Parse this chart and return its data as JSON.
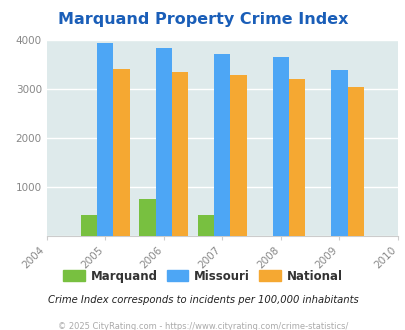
{
  "title": "Marquand Property Crime Index",
  "years": [
    2005,
    2006,
    2007,
    2008,
    2009
  ],
  "x_ticks": [
    2004,
    2005,
    2006,
    2007,
    2008,
    2009,
    2010
  ],
  "marquand": [
    420,
    750,
    420,
    0,
    0
  ],
  "missouri": [
    3930,
    3820,
    3710,
    3640,
    3380
  ],
  "national": [
    3410,
    3340,
    3285,
    3200,
    3040
  ],
  "colors": {
    "marquand": "#78c040",
    "missouri": "#4da6f5",
    "national": "#f5a832",
    "background": "#deeaeb"
  },
  "ylim": [
    0,
    4000
  ],
  "yticks": [
    0,
    1000,
    2000,
    3000,
    4000
  ],
  "title_color": "#1a5eb8",
  "subtitle": "Crime Index corresponds to incidents per 100,000 inhabitants",
  "footer": "© 2025 CityRating.com - https://www.cityrating.com/crime-statistics/",
  "legend_labels": [
    "Marquand",
    "Missouri",
    "National"
  ],
  "bar_width": 0.28
}
